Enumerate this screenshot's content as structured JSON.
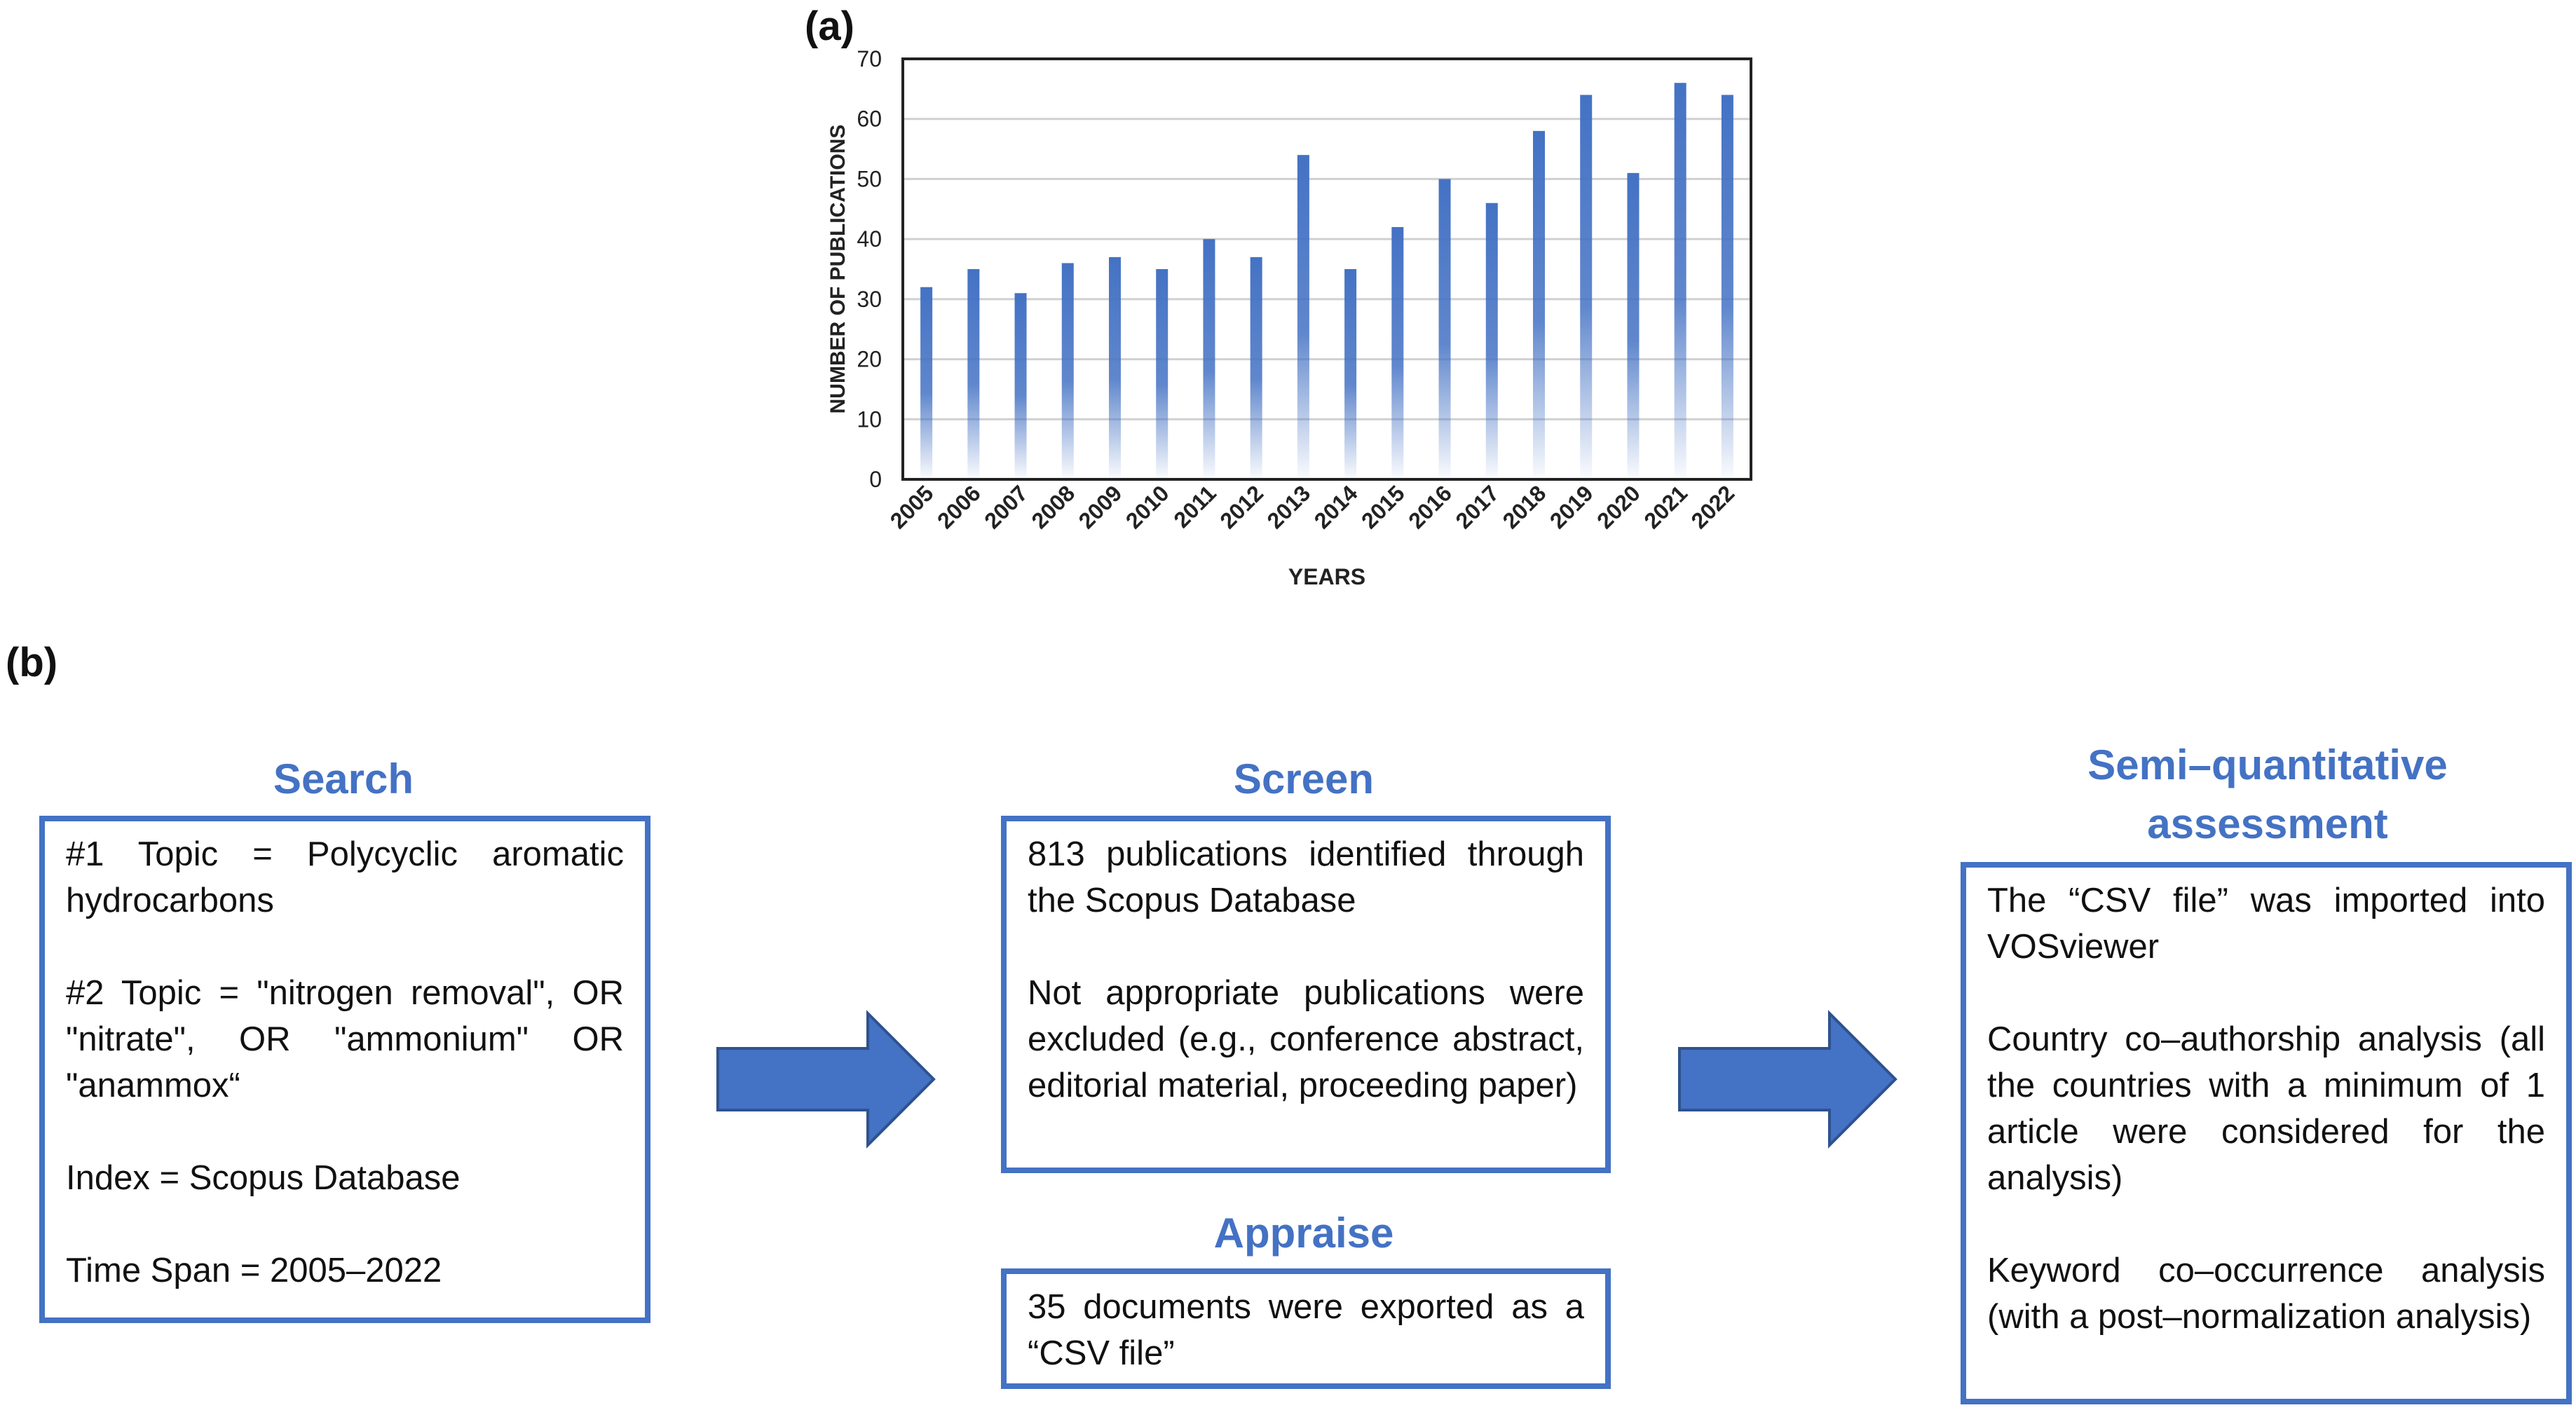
{
  "panel_a_label": "(a)",
  "panel_b_label": "(b)",
  "chart_data": {
    "type": "bar",
    "title": "",
    "xlabel": "YEARS",
    "ylabel": "NUMBER OF PUBLICATIONS",
    "ylim": [
      0,
      70
    ],
    "yticks": [
      0,
      10,
      20,
      30,
      40,
      50,
      60,
      70
    ],
    "grid": true,
    "legend": "none",
    "bar_color": "#4472C4",
    "categories": [
      "2005",
      "2006",
      "2007",
      "2008",
      "2009",
      "2010",
      "2011",
      "2012",
      "2013",
      "2014",
      "2015",
      "2016",
      "2017",
      "2018",
      "2019",
      "2020",
      "2021",
      "2022"
    ],
    "values": [
      32,
      35,
      31,
      36,
      37,
      35,
      40,
      37,
      54,
      35,
      42,
      50,
      46,
      58,
      64,
      51,
      66,
      64
    ]
  },
  "search": {
    "title": "Search",
    "items": [
      "#1 Topic = Polycyclic aromatic hydrocarbons",
      "#2 Topic = \"nitrogen removal\", OR \"nitrate\", OR \"ammonium\" OR \"anammox“",
      "Index = Scopus Database",
      "Time Span = 2005–2022"
    ]
  },
  "screen": {
    "title": "Screen",
    "items": [
      "813 publications identified through the Scopus Database",
      "Not appropriate publications were excluded (e.g., conference abstract, editorial material, proceeding paper)"
    ]
  },
  "appraise": {
    "title": "Appraise",
    "items": [
      "35 documents were exported as a “CSV file”"
    ]
  },
  "assessment": {
    "title": "Semi–quantitative assessment",
    "items": [
      "The “CSV file” was imported into VOSviewer",
      "Country co–authorship analysis (all the countries with a minimum of 1 article were considered for the analysis)",
      "Keyword co–occurrence analysis (with a post–normalization analysis)"
    ]
  },
  "colors": {
    "accent": "#4472C4",
    "arrow_fill": "#4472C4",
    "arrow_stroke": "#2F528F"
  }
}
